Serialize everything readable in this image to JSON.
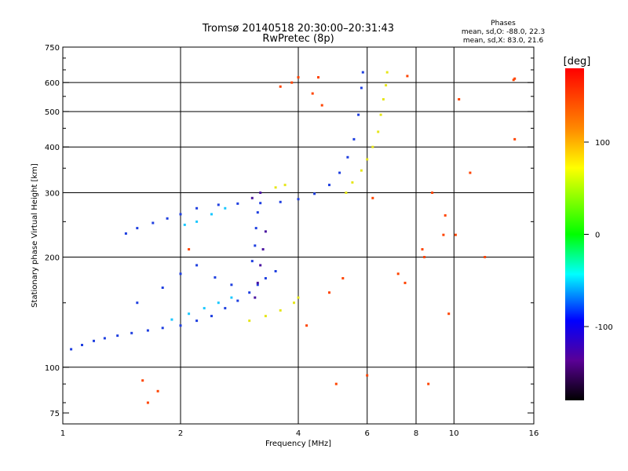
{
  "chart_data": {
    "type": "scatter",
    "title": "Tromsø 20140518 20:30:00–20:31:43",
    "subtitle": "RwPretec (8p)",
    "xlabel": "Frequency [MHz]",
    "ylabel": "Stationary phase Virtual Height [km]",
    "x_scale": "log",
    "y_scale": "log",
    "xlim": [
      1,
      16
    ],
    "ylim": [
      70,
      750
    ],
    "x_ticks": [
      1,
      2,
      4,
      6,
      8,
      10,
      16
    ],
    "y_ticks": [
      75,
      100,
      200,
      300,
      400,
      500,
      600,
      750
    ],
    "grid": true,
    "phase_stats": {
      "title": "Phases",
      "line_o": "mean, sd,O: -88.0, 22.3",
      "line_x": "mean, sd,X: 83.0, 21.6"
    },
    "colorbar": {
      "label": "[deg]",
      "ticks": [
        100,
        0,
        -100
      ],
      "range": [
        -180,
        180
      ],
      "colors_top_to_bottom": [
        "#ff0000",
        "#ff8800",
        "#ffff00",
        "#00ff00",
        "#00ffff",
        "#0000ff",
        "#5a0096",
        "#000000"
      ]
    },
    "series": [
      {
        "mode": "O",
        "color": "#1f3fe0",
        "points": [
          [
            1.05,
            112
          ],
          [
            1.12,
            115
          ],
          [
            1.2,
            118
          ],
          [
            1.28,
            120
          ],
          [
            1.38,
            122
          ],
          [
            1.5,
            124
          ],
          [
            1.65,
            126
          ],
          [
            1.8,
            128
          ],
          [
            2.0,
            130
          ],
          [
            2.2,
            134
          ],
          [
            2.4,
            138
          ],
          [
            2.6,
            145
          ],
          [
            2.8,
            152
          ],
          [
            3.0,
            160
          ],
          [
            3.15,
            168
          ],
          [
            3.3,
            175
          ],
          [
            3.5,
            183
          ],
          [
            1.45,
            232
          ],
          [
            1.55,
            240
          ],
          [
            1.7,
            248
          ],
          [
            1.85,
            255
          ],
          [
            2.0,
            262
          ],
          [
            2.2,
            272
          ],
          [
            2.5,
            278
          ],
          [
            2.8,
            280
          ],
          [
            3.2,
            281
          ],
          [
            3.6,
            283
          ],
          [
            4.0,
            288
          ],
          [
            4.4,
            298
          ],
          [
            4.8,
            315
          ],
          [
            5.1,
            340
          ],
          [
            5.35,
            375
          ],
          [
            5.55,
            420
          ],
          [
            5.7,
            490
          ],
          [
            5.8,
            580
          ],
          [
            5.85,
            640
          ],
          [
            1.55,
            150
          ],
          [
            1.8,
            165
          ],
          [
            2.0,
            180
          ],
          [
            2.2,
            190
          ],
          [
            2.45,
            176
          ],
          [
            2.7,
            168
          ],
          [
            3.05,
            195
          ],
          [
            3.1,
            215
          ],
          [
            3.12,
            240
          ],
          [
            3.15,
            265
          ]
        ]
      },
      {
        "mode": "X",
        "color": "#e6e619",
        "points": [
          [
            3.0,
            134
          ],
          [
            3.3,
            138
          ],
          [
            3.6,
            143
          ],
          [
            3.9,
            150
          ],
          [
            4.0,
            155
          ],
          [
            5.3,
            300
          ],
          [
            5.5,
            320
          ],
          [
            5.8,
            345
          ],
          [
            6.0,
            370
          ],
          [
            6.2,
            400
          ],
          [
            6.4,
            440
          ],
          [
            6.5,
            490
          ],
          [
            6.6,
            540
          ],
          [
            6.7,
            590
          ],
          [
            6.75,
            640
          ],
          [
            3.5,
            310
          ],
          [
            3.7,
            315
          ]
        ]
      },
      {
        "mode": "X",
        "color": "#19c8ff",
        "points": [
          [
            1.9,
            135
          ],
          [
            2.1,
            140
          ],
          [
            2.3,
            145
          ],
          [
            2.5,
            150
          ],
          [
            2.7,
            155
          ],
          [
            2.05,
            245
          ],
          [
            2.2,
            250
          ],
          [
            2.4,
            262
          ],
          [
            2.6,
            272
          ]
        ]
      },
      {
        "mode": "O",
        "color": "#4a14a0",
        "points": [
          [
            3.1,
            155
          ],
          [
            3.15,
            170
          ],
          [
            3.2,
            190
          ],
          [
            3.25,
            210
          ],
          [
            3.3,
            235
          ],
          [
            3.2,
            300
          ],
          [
            3.05,
            290
          ]
        ]
      },
      {
        "mode": "noise",
        "color": "#ff4400",
        "points": [
          [
            1.6,
            92
          ],
          [
            1.65,
            80
          ],
          [
            1.75,
            86
          ],
          [
            2.1,
            210
          ],
          [
            4.0,
            620
          ],
          [
            4.5,
            620
          ],
          [
            6.2,
            290
          ],
          [
            7.6,
            625
          ],
          [
            8.3,
            210
          ],
          [
            8.6,
            90
          ],
          [
            14.2,
            610
          ],
          [
            14.3,
            615
          ],
          [
            8.8,
            300
          ],
          [
            9.5,
            260
          ],
          [
            10.3,
            540
          ],
          [
            12.0,
            200
          ],
          [
            4.2,
            130
          ],
          [
            4.8,
            160
          ],
          [
            5.0,
            90
          ],
          [
            5.2,
            175
          ],
          [
            6.0,
            95
          ],
          [
            7.2,
            180
          ],
          [
            9.4,
            230
          ],
          [
            9.7,
            140
          ],
          [
            10.1,
            230
          ],
          [
            11.0,
            340
          ],
          [
            14.3,
            420
          ],
          [
            3.6,
            585
          ],
          [
            3.85,
            600
          ],
          [
            4.35,
            560
          ],
          [
            4.6,
            520
          ],
          [
            7.5,
            170
          ],
          [
            8.4,
            200
          ]
        ]
      }
    ]
  }
}
